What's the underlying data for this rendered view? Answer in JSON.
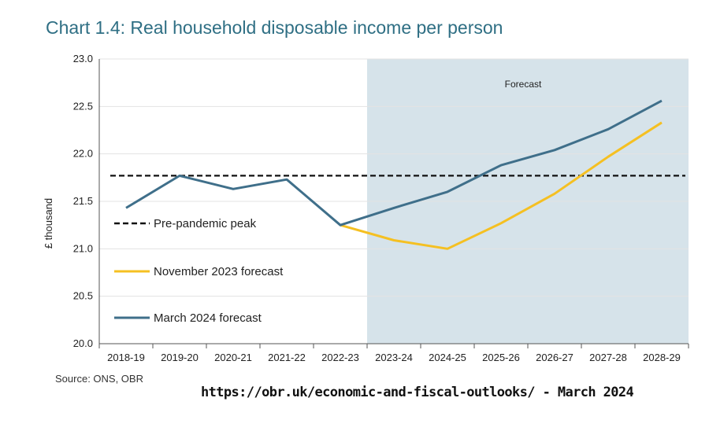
{
  "title": "Chart 1.4: Real household disposable income per person",
  "source": "Source: ONS, OBR",
  "url_caption": "https://obr.uk/economic-and-fiscal-outlooks/ - March 2024",
  "chart_data": {
    "type": "line",
    "title": "Chart 1.4: Real household disposable income per person",
    "ylabel": "£ thousand",
    "ylim": [
      20.0,
      23.0
    ],
    "yticks": [
      "20.0",
      "20.5",
      "21.0",
      "21.5",
      "22.0",
      "22.5",
      "23.0"
    ],
    "categories": [
      "2018-19",
      "2019-20",
      "2020-21",
      "2021-22",
      "2022-23",
      "2023-24",
      "2024-25",
      "2025-26",
      "2026-27",
      "2027-28",
      "2028-29"
    ],
    "forecast_label": "Forecast",
    "forecast_start": "2022-23",
    "grid": true,
    "legend_position": "left",
    "series": [
      {
        "name": "Pre-pandemic peak",
        "style": "dashed",
        "color": "#111111",
        "values": [
          21.77,
          21.77,
          21.77,
          21.77,
          21.77,
          21.77,
          21.77,
          21.77,
          21.77,
          21.77,
          21.77
        ]
      },
      {
        "name": "November 2023 forecast",
        "style": "solid",
        "color": "#f5c022",
        "values": [
          null,
          null,
          null,
          null,
          21.25,
          21.09,
          21.0,
          21.27,
          21.58,
          21.97,
          22.33
        ]
      },
      {
        "name": "March 2024 forecast",
        "style": "solid",
        "color": "#3f6f8a",
        "values": [
          21.43,
          21.77,
          21.63,
          21.73,
          21.25,
          21.43,
          21.6,
          21.88,
          22.04,
          22.26,
          22.56
        ]
      }
    ]
  }
}
